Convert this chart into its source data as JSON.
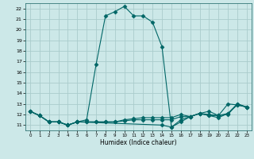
{
  "xlabel": "Humidex (Indice chaleur)",
  "bg_color": "#cce8e8",
  "grid_color": "#aacccc",
  "line_color": "#006666",
  "xlim": [
    -0.5,
    23.5
  ],
  "ylim": [
    10.5,
    22.5
  ],
  "yticks": [
    11,
    12,
    13,
    14,
    15,
    16,
    17,
    18,
    19,
    20,
    21,
    22
  ],
  "xticks": [
    0,
    1,
    2,
    3,
    4,
    5,
    6,
    7,
    8,
    9,
    10,
    11,
    12,
    13,
    14,
    15,
    16,
    17,
    18,
    19,
    20,
    21,
    22,
    23
  ],
  "curve_main": {
    "x": [
      0,
      1,
      2,
      3,
      4,
      5,
      6,
      7,
      8,
      9,
      10,
      11,
      12,
      13,
      14,
      15,
      16,
      17,
      18,
      19,
      20,
      21,
      22,
      23
    ],
    "y": [
      12.3,
      11.9,
      11.3,
      11.3,
      11.0,
      11.3,
      11.5,
      16.7,
      21.3,
      21.7,
      22.2,
      21.3,
      21.3,
      20.7,
      18.4,
      10.8,
      11.5,
      11.8,
      12.1,
      12.3,
      11.9,
      12.0,
      13.0,
      12.7
    ]
  },
  "curve_flat1": {
    "x": [
      0,
      1,
      2,
      3,
      4,
      5,
      6,
      7,
      8,
      9,
      10,
      11,
      12,
      13,
      14,
      15,
      16,
      17,
      18,
      19,
      20,
      21,
      22,
      23
    ],
    "y": [
      12.3,
      11.9,
      11.3,
      11.3,
      11.0,
      11.3,
      11.3,
      11.3,
      11.3,
      11.3,
      11.4,
      11.5,
      11.5,
      11.5,
      11.5,
      11.5,
      11.8,
      11.8,
      12.1,
      11.9,
      11.7,
      12.1,
      12.9,
      12.7
    ]
  },
  "curve_flat2": {
    "x": [
      0,
      1,
      2,
      3,
      4,
      5,
      6,
      7,
      8,
      9,
      10,
      11,
      12,
      13,
      14,
      15,
      16,
      17,
      18,
      19,
      20,
      21,
      22,
      23
    ],
    "y": [
      12.3,
      11.9,
      11.3,
      11.3,
      11.0,
      11.3,
      11.3,
      11.3,
      11.3,
      11.3,
      11.5,
      11.6,
      11.7,
      11.7,
      11.7,
      11.7,
      12.0,
      11.8,
      12.1,
      12.0,
      11.9,
      12.1,
      13.0,
      12.7
    ]
  },
  "curve_bottom": {
    "x": [
      0,
      1,
      2,
      3,
      4,
      5,
      14,
      15,
      16,
      17,
      18,
      19,
      20,
      21,
      22,
      23
    ],
    "y": [
      12.3,
      11.9,
      11.3,
      11.3,
      11.0,
      11.3,
      11.0,
      10.8,
      11.3,
      11.8,
      12.1,
      11.9,
      11.9,
      13.0,
      12.9,
      12.7
    ]
  }
}
